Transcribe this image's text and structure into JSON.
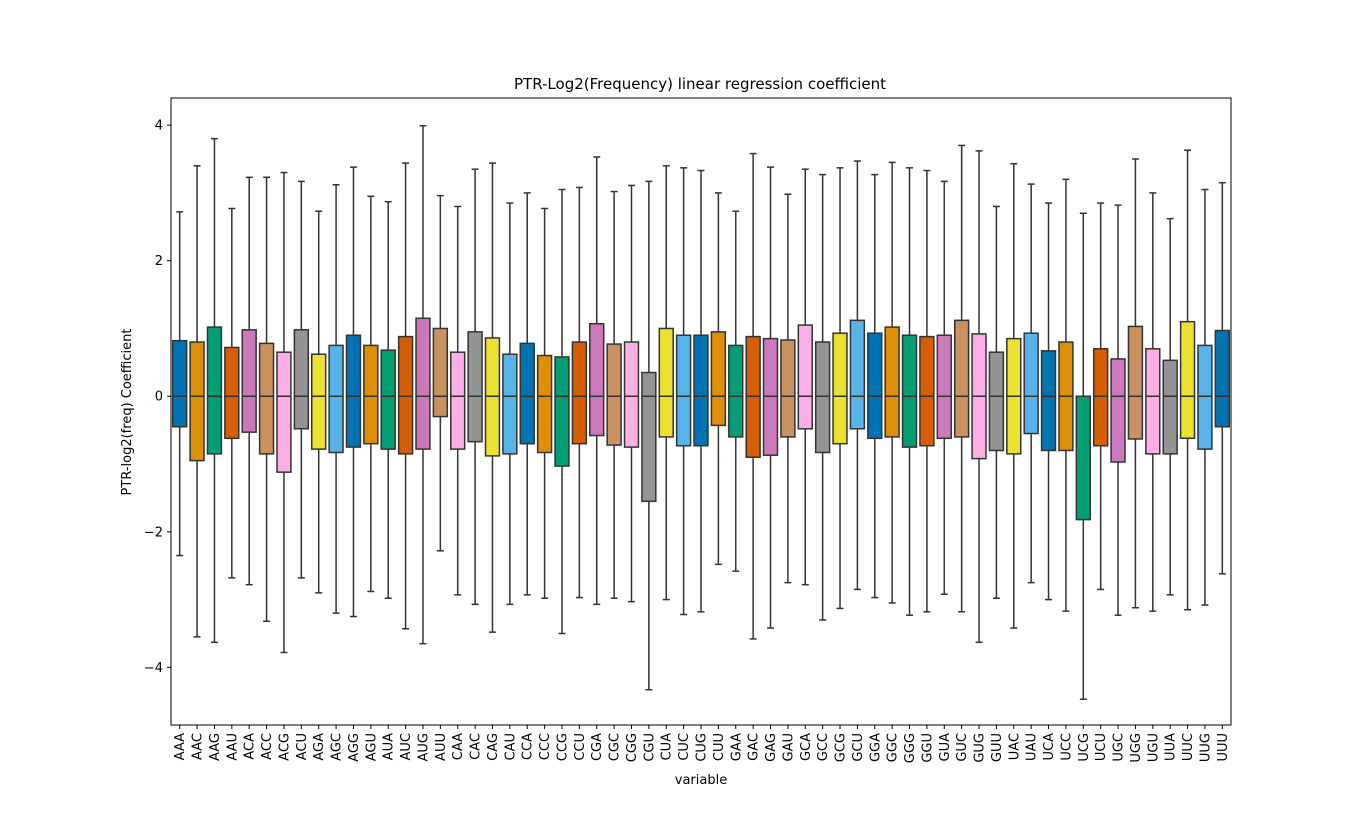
{
  "chart_data": {
    "type": "box",
    "title": "PTR-Log2(Frequency) linear regression coefficient",
    "xlabel": "variable",
    "ylabel": "PTR-log2(freq) Coefficient",
    "ylim": [
      -4.85,
      4.4
    ],
    "yticks": [
      4,
      2,
      0,
      -2,
      -4
    ],
    "yticklabels": [
      "4",
      "2",
      "0",
      "−2",
      "−4"
    ],
    "palette": [
      "#0173b2",
      "#de8f05",
      "#029e73",
      "#d55e00",
      "#cc78bc",
      "#ca9161",
      "#fbafe4",
      "#949494",
      "#ece133",
      "#56b4e9"
    ],
    "categories": [
      "AAA",
      "AAC",
      "AAG",
      "AAU",
      "ACA",
      "ACC",
      "ACG",
      "ACU",
      "AGA",
      "AGC",
      "AGG",
      "AGU",
      "AUA",
      "AUC",
      "AUG",
      "AUU",
      "CAA",
      "CAC",
      "CAG",
      "CAU",
      "CCA",
      "CCC",
      "CCG",
      "CCU",
      "CGA",
      "CGC",
      "CGG",
      "CGU",
      "CUA",
      "CUC",
      "CUG",
      "CUU",
      "GAA",
      "GAC",
      "GAG",
      "GAU",
      "GCA",
      "GCC",
      "GCG",
      "GCU",
      "GGA",
      "GGC",
      "GGG",
      "GGU",
      "GUA",
      "GUC",
      "GUG",
      "GUU",
      "UAC",
      "UAU",
      "UCA",
      "UCC",
      "UCG",
      "UCU",
      "UGC",
      "UGG",
      "UGU",
      "UUA",
      "UUC",
      "UUG",
      "UUU"
    ],
    "boxes": [
      {
        "whislo": -2.35,
        "q1": -0.45,
        "med": 0,
        "q3": 0.82,
        "whishi": 2.72
      },
      {
        "whislo": -3.55,
        "q1": -0.95,
        "med": 0,
        "q3": 0.8,
        "whishi": 3.4
      },
      {
        "whislo": -3.63,
        "q1": -0.85,
        "med": 0,
        "q3": 1.02,
        "whishi": 3.8
      },
      {
        "whislo": -2.68,
        "q1": -0.62,
        "med": 0,
        "q3": 0.72,
        "whishi": 2.77
      },
      {
        "whislo": -2.78,
        "q1": -0.53,
        "med": 0,
        "q3": 0.98,
        "whishi": 3.23
      },
      {
        "whislo": -3.32,
        "q1": -0.85,
        "med": 0,
        "q3": 0.78,
        "whishi": 3.23
      },
      {
        "whislo": -3.78,
        "q1": -1.12,
        "med": 0,
        "q3": 0.65,
        "whishi": 3.3
      },
      {
        "whislo": -2.68,
        "q1": -0.48,
        "med": 0,
        "q3": 0.98,
        "whishi": 3.17
      },
      {
        "whislo": -2.9,
        "q1": -0.78,
        "med": 0,
        "q3": 0.62,
        "whishi": 2.73
      },
      {
        "whislo": -3.2,
        "q1": -0.83,
        "med": 0,
        "q3": 0.75,
        "whishi": 3.12
      },
      {
        "whislo": -3.25,
        "q1": -0.75,
        "med": 0,
        "q3": 0.9,
        "whishi": 3.38
      },
      {
        "whislo": -2.88,
        "q1": -0.7,
        "med": 0,
        "q3": 0.75,
        "whishi": 2.95
      },
      {
        "whislo": -2.98,
        "q1": -0.78,
        "med": 0,
        "q3": 0.68,
        "whishi": 2.87
      },
      {
        "whislo": -3.43,
        "q1": -0.85,
        "med": 0,
        "q3": 0.88,
        "whishi": 3.44
      },
      {
        "whislo": -3.65,
        "q1": -0.78,
        "med": 0,
        "q3": 1.15,
        "whishi": 3.99
      },
      {
        "whislo": -2.28,
        "q1": -0.3,
        "med": 0,
        "q3": 1.0,
        "whishi": 2.96
      },
      {
        "whislo": -2.93,
        "q1": -0.78,
        "med": 0,
        "q3": 0.65,
        "whishi": 2.8
      },
      {
        "whislo": -3.07,
        "q1": -0.67,
        "med": 0,
        "q3": 0.95,
        "whishi": 3.35
      },
      {
        "whislo": -3.48,
        "q1": -0.88,
        "med": 0,
        "q3": 0.86,
        "whishi": 3.44
      },
      {
        "whislo": -3.07,
        "q1": -0.85,
        "med": 0,
        "q3": 0.62,
        "whishi": 2.85
      },
      {
        "whislo": -2.93,
        "q1": -0.7,
        "med": 0,
        "q3": 0.78,
        "whishi": 3.0
      },
      {
        "whislo": -2.98,
        "q1": -0.83,
        "med": 0,
        "q3": 0.6,
        "whishi": 2.77
      },
      {
        "whislo": -3.5,
        "q1": -1.03,
        "med": 0,
        "q3": 0.58,
        "whishi": 3.05
      },
      {
        "whislo": -2.97,
        "q1": -0.7,
        "med": 0,
        "q3": 0.8,
        "whishi": 3.08
      },
      {
        "whislo": -3.07,
        "q1": -0.58,
        "med": 0,
        "q3": 1.07,
        "whishi": 3.53
      },
      {
        "whislo": -2.98,
        "q1": -0.72,
        "med": 0,
        "q3": 0.77,
        "whishi": 3.02
      },
      {
        "whislo": -3.03,
        "q1": -0.75,
        "med": 0,
        "q3": 0.8,
        "whishi": 3.11
      },
      {
        "whislo": -4.33,
        "q1": -1.55,
        "med": 0,
        "q3": 0.35,
        "whishi": 3.17
      },
      {
        "whislo": -3.0,
        "q1": -0.6,
        "med": 0,
        "q3": 1.0,
        "whishi": 3.4
      },
      {
        "whislo": -3.22,
        "q1": -0.73,
        "med": 0,
        "q3": 0.9,
        "whishi": 3.37
      },
      {
        "whislo": -3.18,
        "q1": -0.73,
        "med": 0,
        "q3": 0.9,
        "whishi": 3.33
      },
      {
        "whislo": -2.48,
        "q1": -0.43,
        "med": 0,
        "q3": 0.95,
        "whishi": 3.0
      },
      {
        "whislo": -2.58,
        "q1": -0.6,
        "med": 0,
        "q3": 0.75,
        "whishi": 2.73
      },
      {
        "whislo": -3.58,
        "q1": -0.9,
        "med": 0,
        "q3": 0.88,
        "whishi": 3.58
      },
      {
        "whislo": -3.42,
        "q1": -0.87,
        "med": 0,
        "q3": 0.85,
        "whishi": 3.38
      },
      {
        "whislo": -2.75,
        "q1": -0.6,
        "med": 0,
        "q3": 0.83,
        "whishi": 2.98
      },
      {
        "whislo": -2.78,
        "q1": -0.48,
        "med": 0,
        "q3": 1.05,
        "whishi": 3.35
      },
      {
        "whislo": -3.3,
        "q1": -0.83,
        "med": 0,
        "q3": 0.8,
        "whishi": 3.27
      },
      {
        "whislo": -3.13,
        "q1": -0.7,
        "med": 0,
        "q3": 0.93,
        "whishi": 3.37
      },
      {
        "whislo": -2.85,
        "q1": -0.48,
        "med": 0,
        "q3": 1.12,
        "whishi": 3.47
      },
      {
        "whislo": -2.97,
        "q1": -0.62,
        "med": 0,
        "q3": 0.93,
        "whishi": 3.27
      },
      {
        "whislo": -3.05,
        "q1": -0.6,
        "med": 0,
        "q3": 1.02,
        "whishi": 3.45
      },
      {
        "whislo": -3.23,
        "q1": -0.75,
        "med": 0,
        "q3": 0.9,
        "whishi": 3.37
      },
      {
        "whislo": -3.18,
        "q1": -0.73,
        "med": 0,
        "q3": 0.88,
        "whishi": 3.33
      },
      {
        "whislo": -2.92,
        "q1": -0.62,
        "med": 0,
        "q3": 0.9,
        "whishi": 3.17
      },
      {
        "whislo": -3.18,
        "q1": -0.6,
        "med": 0,
        "q3": 1.12,
        "whishi": 3.7
      },
      {
        "whislo": -3.63,
        "q1": -0.92,
        "med": 0,
        "q3": 0.92,
        "whishi": 3.62
      },
      {
        "whislo": -2.98,
        "q1": -0.8,
        "med": 0,
        "q3": 0.65,
        "whishi": 2.8
      },
      {
        "whislo": -3.42,
        "q1": -0.85,
        "med": 0,
        "q3": 0.85,
        "whishi": 3.43
      },
      {
        "whislo": -2.75,
        "q1": -0.55,
        "med": 0,
        "q3": 0.93,
        "whishi": 3.13
      },
      {
        "whislo": -3.0,
        "q1": -0.8,
        "med": 0,
        "q3": 0.67,
        "whishi": 2.85
      },
      {
        "whislo": -3.17,
        "q1": -0.8,
        "med": 0,
        "q3": 0.8,
        "whishi": 3.2
      },
      {
        "whislo": -4.47,
        "q1": -1.82,
        "med": 0,
        "q3": 0.0,
        "whishi": 2.7
      },
      {
        "whislo": -2.85,
        "q1": -0.73,
        "med": 0,
        "q3": 0.7,
        "whishi": 2.85
      },
      {
        "whislo": -3.23,
        "q1": -0.97,
        "med": 0,
        "q3": 0.55,
        "whishi": 2.82
      },
      {
        "whislo": -3.12,
        "q1": -0.63,
        "med": 0,
        "q3": 1.03,
        "whishi": 3.5
      },
      {
        "whislo": -3.17,
        "q1": -0.85,
        "med": 0,
        "q3": 0.7,
        "whishi": 3.0
      },
      {
        "whislo": -2.93,
        "q1": -0.85,
        "med": 0,
        "q3": 0.53,
        "whishi": 2.62
      },
      {
        "whislo": -3.15,
        "q1": -0.62,
        "med": 0,
        "q3": 1.1,
        "whishi": 3.63
      },
      {
        "whislo": -3.08,
        "q1": -0.78,
        "med": 0,
        "q3": 0.75,
        "whishi": 3.05
      },
      {
        "whislo": -2.62,
        "q1": -0.45,
        "med": 0,
        "q3": 0.97,
        "whishi": 3.15
      }
    ],
    "grid": false,
    "legend": "none"
  }
}
